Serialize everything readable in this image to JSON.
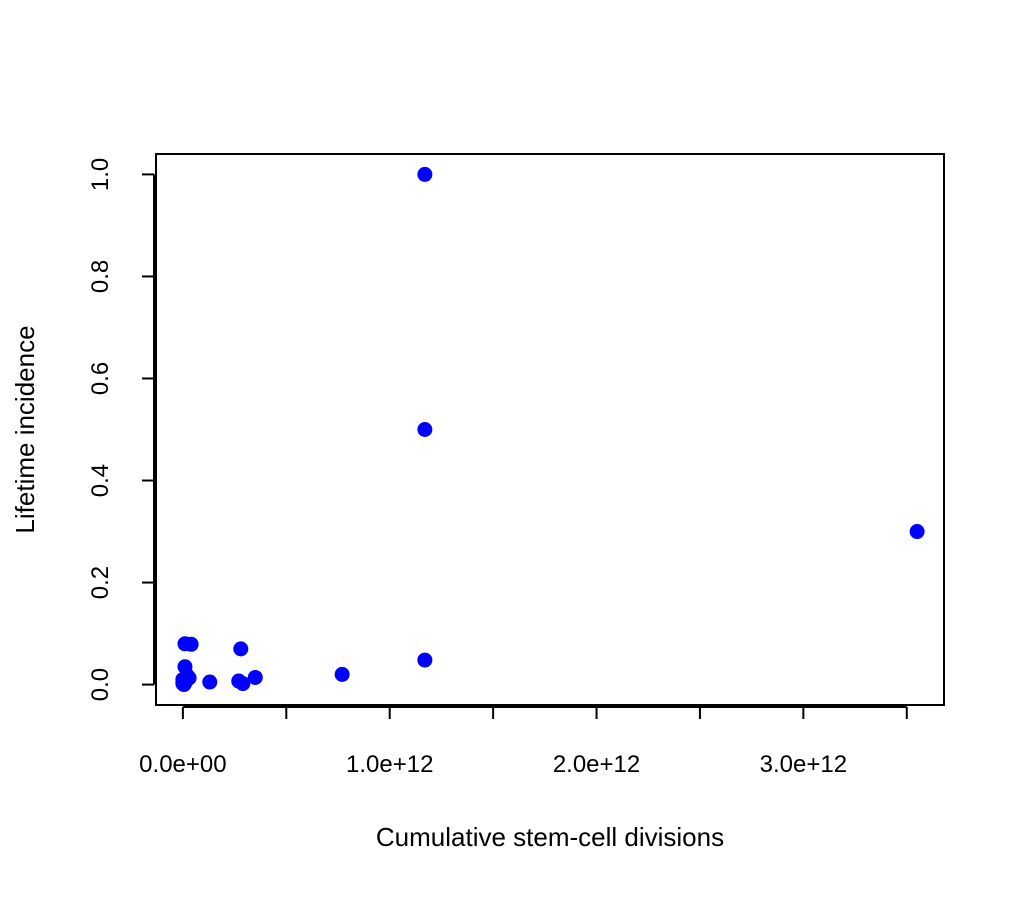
{
  "chart_data": {
    "type": "scatter",
    "title": "",
    "xlabel": "Cumulative stem-cell divisions",
    "ylabel": "Lifetime incidence",
    "xlim": [
      -130000000000.0,
      3680000000000.0
    ],
    "ylim": [
      -0.04,
      1.04
    ],
    "x_ticks": [
      0,
      500000000000.0,
      1000000000000.0,
      1500000000000.0,
      2000000000000.0,
      2500000000000.0,
      3000000000000.0,
      3500000000000.0
    ],
    "x_tick_labels": [
      "0.0e+00",
      "",
      "1.0e+12",
      "",
      "2.0e+12",
      "",
      "3.0e+12",
      ""
    ],
    "y_ticks": [
      0.0,
      0.2,
      0.4,
      0.6,
      0.8,
      1.0
    ],
    "y_tick_labels": [
      "0.0",
      "0.2",
      "0.4",
      "0.6",
      "0.8",
      "1.0"
    ],
    "grid": false,
    "legend": "none",
    "point_color": "#0000ff",
    "points": [
      {
        "x": 1170000000000.0,
        "y": 1.0
      },
      {
        "x": 1170000000000.0,
        "y": 0.5
      },
      {
        "x": 3550000000000.0,
        "y": 0.3
      },
      {
        "x": 1170000000000.0,
        "y": 0.048
      },
      {
        "x": 770000000000.0,
        "y": 0.02
      },
      {
        "x": 280000000000.0,
        "y": 0.07
      },
      {
        "x": 350000000000.0,
        "y": 0.014
      },
      {
        "x": 290000000000.0,
        "y": 0.002
      },
      {
        "x": 270000000000.0,
        "y": 0.007
      },
      {
        "x": 130000000000.0,
        "y": 0.005
      },
      {
        "x": 10000000000.0,
        "y": 0.08
      },
      {
        "x": 40000000000.0,
        "y": 0.079
      },
      {
        "x": 10000000000.0,
        "y": 0.035
      },
      {
        "x": 20000000000.0,
        "y": 0.018
      },
      {
        "x": 30000000000.0,
        "y": 0.013
      },
      {
        "x": 0.0,
        "y": 0.01
      },
      {
        "x": 0.0,
        "y": 0.005
      },
      {
        "x": 0.0,
        "y": 0.002
      },
      {
        "x": 5000000000.0,
        "y": 0.0
      },
      {
        "x": 10000000000.0,
        "y": 0.003
      }
    ]
  }
}
